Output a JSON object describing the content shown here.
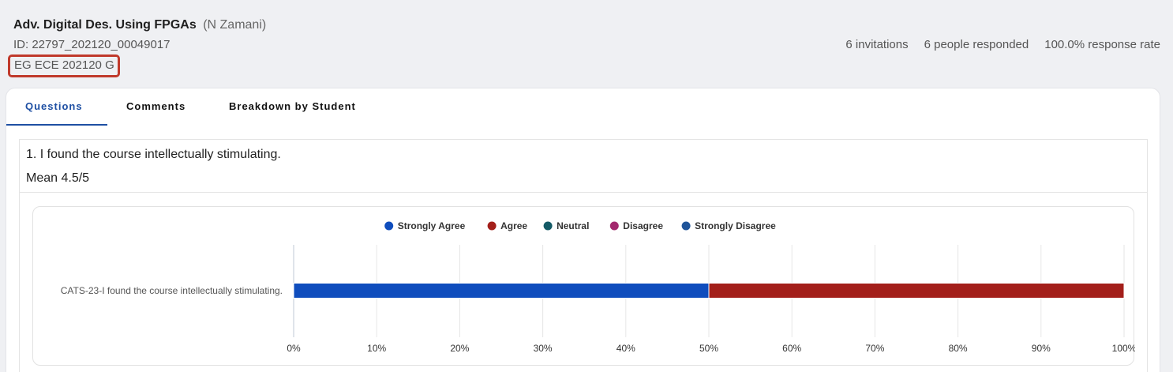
{
  "course": {
    "title": "Adv. Digital Des. Using FPGAs",
    "instructor": "(N Zamani)",
    "id": "ID: 22797_202120_00049017",
    "section": "EG ECE 202120 G"
  },
  "stats": {
    "invitations": "6 invitations",
    "responded": "6 people responded",
    "rate": "100.0% response rate"
  },
  "tabs": [
    {
      "label": "Questions"
    },
    {
      "label": "Comments"
    },
    {
      "label": "Breakdown by Student"
    }
  ],
  "question": {
    "title": "1. I found the course intellectually stimulating.",
    "mean": "Mean 4.5/5"
  },
  "chart_data": {
    "type": "bar",
    "orientation": "horizontal",
    "stacked": true,
    "percent": true,
    "categories": [
      "CATS-23-I found the course intellectually stimulating."
    ],
    "series": [
      {
        "name": "Strongly Agree",
        "color": "#0f4dbd",
        "values": [
          50
        ]
      },
      {
        "name": "Agree",
        "color": "#a31f1a",
        "values": [
          50
        ]
      },
      {
        "name": "Neutral",
        "color": "#145a66",
        "values": [
          0
        ]
      },
      {
        "name": "Disagree",
        "color": "#a3286e",
        "values": [
          0
        ]
      },
      {
        "name": "Strongly Disagree",
        "color": "#1f5499",
        "values": [
          0
        ]
      }
    ],
    "xlim": [
      0,
      100
    ],
    "xticks": [
      "0%",
      "10%",
      "20%",
      "30%",
      "40%",
      "50%",
      "60%",
      "70%",
      "80%",
      "90%",
      "100%"
    ],
    "legend_position": "top",
    "grid": true
  }
}
